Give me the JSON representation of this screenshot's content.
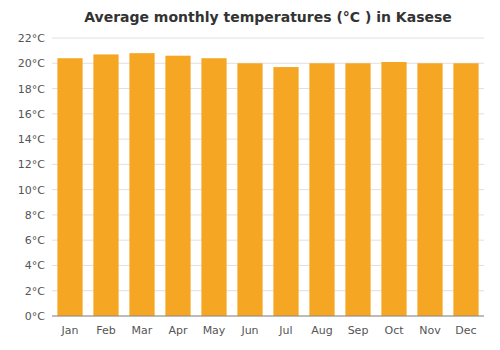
{
  "chart_data": {
    "type": "bar",
    "title": "Average monthly temperatures (°C ) in Kasese",
    "categories": [
      "Jan",
      "Feb",
      "Mar",
      "Apr",
      "May",
      "Jun",
      "Jul",
      "Aug",
      "Sep",
      "Oct",
      "Nov",
      "Dec"
    ],
    "values": [
      20.4,
      20.7,
      20.8,
      20.6,
      20.4,
      20.0,
      19.7,
      20.0,
      20.0,
      20.1,
      20.0,
      20.0
    ],
    "color": "#F5A623",
    "ylim": [
      0,
      22
    ],
    "yticks": [
      {
        "value": 0,
        "label": "0°C"
      },
      {
        "value": 2,
        "label": "2°C"
      },
      {
        "value": 4,
        "label": "4°C"
      },
      {
        "value": 6,
        "label": "6°C"
      },
      {
        "value": 8,
        "label": "8°C"
      },
      {
        "value": 10,
        "label": "10°C"
      },
      {
        "value": 12,
        "label": "12°C"
      },
      {
        "value": 14,
        "label": "14°C"
      },
      {
        "value": 16,
        "label": "16°C"
      },
      {
        "value": 18,
        "label": "18°C"
      },
      {
        "value": 20,
        "label": "20°C"
      },
      {
        "value": 22,
        "label": "22°C"
      }
    ],
    "grid": true
  }
}
